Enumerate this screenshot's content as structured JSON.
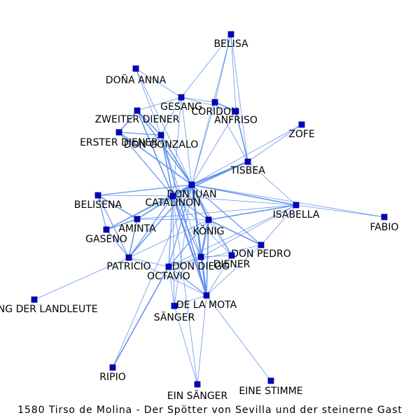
{
  "caption": "1580 Tirso de Molina - Der Spötter von Sevilla und der steinerne Gast",
  "colors": {
    "edge": "#6495ED",
    "node_fill": "#0000CC",
    "node_stroke": "#000066",
    "label": "#000000"
  },
  "nodes": [
    {
      "id": "BELISA",
      "label": "BELISA"
    },
    {
      "id": "DONA_ANNA",
      "label": "DOÑA ANNA"
    },
    {
      "id": "GESANG",
      "label": "GESANG"
    },
    {
      "id": "CORIDON",
      "label": "CORIDON"
    },
    {
      "id": "ANFRISO",
      "label": "ANFRISO"
    },
    {
      "id": "ZWEITER_DIENER",
      "label": "ZWEITER DIENER"
    },
    {
      "id": "ZOFE",
      "label": "ZOFE"
    },
    {
      "id": "ERSTER_DIENER",
      "label": "ERSTER DIENER"
    },
    {
      "id": "DON_GONZALO",
      "label": "DON GONZALO"
    },
    {
      "id": "TISBEA",
      "label": "TISBEA"
    },
    {
      "id": "DON_JUAN",
      "label": "DON JUAN"
    },
    {
      "id": "CATALINON",
      "label": "CATALINON"
    },
    {
      "id": "BELISENA",
      "label": "BELISENA"
    },
    {
      "id": "ISABELLA",
      "label": "ISABELLA"
    },
    {
      "id": "FABIO",
      "label": "FABIO"
    },
    {
      "id": "AMINTA",
      "label": "AMINTA"
    },
    {
      "id": "KONIG",
      "label": "KÖNIG"
    },
    {
      "id": "GASENO",
      "label": "GASENO"
    },
    {
      "id": "DON_PEDRO",
      "label": "DON PEDRO"
    },
    {
      "id": "DIENER",
      "label": "DIENER"
    },
    {
      "id": "PATRICIO",
      "label": "PATRICIO"
    },
    {
      "id": "DON_DIEGO",
      "label": "DON DIEGO"
    },
    {
      "id": "OCTAVIO",
      "label": "OCTAVIO"
    },
    {
      "id": "GESANG_LANDLEUTE",
      "label": "GESANG DER LANDLEUTE"
    },
    {
      "id": "DE_LA_MOTA",
      "label": "DE LA MOTA"
    },
    {
      "id": "SANGER",
      "label": "SÄNGER"
    },
    {
      "id": "RIPIO",
      "label": "RIPIO"
    },
    {
      "id": "EIN_SANGER",
      "label": "EIN SÄNGER"
    },
    {
      "id": "EINE_STIMME",
      "label": "EINE STIMME"
    }
  ],
  "edges": [
    [
      "DON_JUAN",
      "CATALINON",
      4
    ],
    [
      "DON_JUAN",
      "DE_LA_MOTA",
      3
    ],
    [
      "DON_JUAN",
      "KONIG",
      3
    ],
    [
      "DON_JUAN",
      "TISBEA",
      3
    ],
    [
      "DON_JUAN",
      "AMINTA",
      2
    ],
    [
      "DON_JUAN",
      "DON_GONZALO",
      2
    ],
    [
      "DON_JUAN",
      "ISABELLA",
      2
    ],
    [
      "DON_JUAN",
      "ZWEITER_DIENER",
      2
    ],
    [
      "DON_JUAN",
      "ERSTER_DIENER",
      2
    ],
    [
      "DON_JUAN",
      "BELISENA",
      1.5
    ],
    [
      "DON_JUAN",
      "PATRICIO",
      2
    ],
    [
      "DON_JUAN",
      "DON_DIEGO",
      2
    ],
    [
      "DON_JUAN",
      "OCTAVIO",
      1.5
    ],
    [
      "DON_JUAN",
      "GASENO",
      1.5
    ],
    [
      "DON_JUAN",
      "DON_PEDRO",
      1.5
    ],
    [
      "DON_JUAN",
      "DIENER",
      1
    ],
    [
      "DON_JUAN",
      "GESANG",
      1
    ],
    [
      "DON_JUAN",
      "CORIDON",
      1
    ],
    [
      "DON_JUAN",
      "ANFRISO",
      1
    ],
    [
      "DON_JUAN",
      "BELISA",
      1
    ],
    [
      "DON_JUAN",
      "DONA_ANNA",
      1
    ],
    [
      "DON_JUAN",
      "ZOFE",
      1
    ],
    [
      "DON_JUAN",
      "SANGER",
      1
    ],
    [
      "DON_JUAN",
      "FABIO",
      1
    ],
    [
      "DON_JUAN",
      "RIPIO",
      1
    ],
    [
      "CATALINON",
      "DE_LA_MOTA",
      3
    ],
    [
      "CATALINON",
      "KONIG",
      1.5
    ],
    [
      "CATALINON",
      "TISBEA",
      2
    ],
    [
      "CATALINON",
      "ZWEITER_DIENER",
      2
    ],
    [
      "CATALINON",
      "ERSTER_DIENER",
      1.5
    ],
    [
      "CATALINON",
      "DON_GONZALO",
      2
    ],
    [
      "CATALINON",
      "AMINTA",
      1.5
    ],
    [
      "CATALINON",
      "PATRICIO",
      1.5
    ],
    [
      "CATALINON",
      "OCTAVIO",
      1.5
    ],
    [
      "CATALINON",
      "DON_DIEGO",
      1.5
    ],
    [
      "CATALINON",
      "ISABELLA",
      1
    ],
    [
      "CATALINON",
      "BELISENA",
      1
    ],
    [
      "CATALINON",
      "GESANG",
      1
    ],
    [
      "CATALINON",
      "GASENO",
      1
    ],
    [
      "CATALINON",
      "DIENER",
      1
    ],
    [
      "CATALINON",
      "EIN_SANGER",
      1
    ],
    [
      "CATALINON",
      "SANGER",
      1
    ],
    [
      "KONIG",
      "DON_DIEGO",
      3
    ],
    [
      "KONIG",
      "DE_LA_MOTA",
      2
    ],
    [
      "KONIG",
      "DON_PEDRO",
      2
    ],
    [
      "KONIG",
      "ISABELLA",
      2
    ],
    [
      "KONIG",
      "OCTAVIO",
      1.5
    ],
    [
      "KONIG",
      "DIENER",
      1
    ],
    [
      "KONIG",
      "PATRICIO",
      1
    ],
    [
      "KONIG",
      "AMINTA",
      1
    ],
    [
      "ISABELLA",
      "FABIO",
      1
    ],
    [
      "ISABELLA",
      "TISBEA",
      1
    ],
    [
      "ISABELLA",
      "DON_PEDRO",
      1
    ],
    [
      "ISABELLA",
      "OCTAVIO",
      1
    ],
    [
      "ISABELLA",
      "AMINTA",
      1
    ],
    [
      "ISABELLA",
      "DON_DIEGO",
      1
    ],
    [
      "DON_PEDRO",
      "OCTAVIO",
      1
    ],
    [
      "DON_PEDRO",
      "DE_LA_MOTA",
      1
    ],
    [
      "TISBEA",
      "ANFRISO",
      2
    ],
    [
      "TISBEA",
      "BELISA",
      1
    ],
    [
      "TISBEA",
      "CORIDON",
      1
    ],
    [
      "TISBEA",
      "ZOFE",
      1
    ],
    [
      "ANFRISO",
      "CORIDON",
      2
    ],
    [
      "ANFRISO",
      "BELISA",
      1
    ],
    [
      "ANFRISO",
      "GESANG",
      1
    ],
    [
      "CORIDON",
      "BELISA",
      1
    ],
    [
      "CORIDON",
      "GESANG",
      1
    ],
    [
      "GESANG",
      "BELISA",
      1
    ],
    [
      "GESANG",
      "ZWEITER_DIENER",
      1
    ],
    [
      "GESANG",
      "DON_GONZALO",
      1
    ],
    [
      "DONA_ANNA",
      "DON_GONZALO",
      1
    ],
    [
      "DONA_ANNA",
      "GESANG",
      1
    ],
    [
      "ZWEITER_DIENER",
      "ERSTER_DIENER",
      2
    ],
    [
      "ZWEITER_DIENER",
      "DON_GONZALO",
      2
    ],
    [
      "ERSTER_DIENER",
      "DON_GONZALO",
      1.5
    ],
    [
      "DON_GONZALO",
      "DE_LA_MOTA",
      2
    ],
    [
      "DON_GONZALO",
      "DON_DIEGO",
      1
    ],
    [
      "BELISENA",
      "AMINTA",
      2
    ],
    [
      "BELISENA",
      "GASENO",
      1.5
    ],
    [
      "BELISENA",
      "PATRICIO",
      1.5
    ],
    [
      "AMINTA",
      "GASENO",
      2
    ],
    [
      "AMINTA",
      "PATRICIO",
      2
    ],
    [
      "GASENO",
      "PATRICIO",
      1.5
    ],
    [
      "PATRICIO",
      "OCTAVIO",
      1
    ],
    [
      "PATRICIO",
      "GESANG_LANDLEUTE",
      1
    ],
    [
      "PATRICIO",
      "DE_LA_MOTA",
      1
    ],
    [
      "OCTAVIO",
      "DE_LA_MOTA",
      1.5
    ],
    [
      "OCTAVIO",
      "DON_DIEGO",
      1
    ],
    [
      "OCTAVIO",
      "RIPIO",
      2
    ],
    [
      "OCTAVIO",
      "SANGER",
      1
    ],
    [
      "DE_LA_MOTA",
      "DON_DIEGO",
      2
    ],
    [
      "DE_LA_MOTA",
      "SANGER",
      1
    ],
    [
      "DE_LA_MOTA",
      "EIN_SANGER",
      1
    ],
    [
      "DE_LA_MOTA",
      "EINE_STIMME",
      1
    ],
    [
      "DE_LA_MOTA",
      "DIENER",
      1
    ],
    [
      "DON_DIEGO",
      "DIENER",
      1
    ],
    [
      "SANGER",
      "EIN_SANGER",
      1
    ]
  ]
}
